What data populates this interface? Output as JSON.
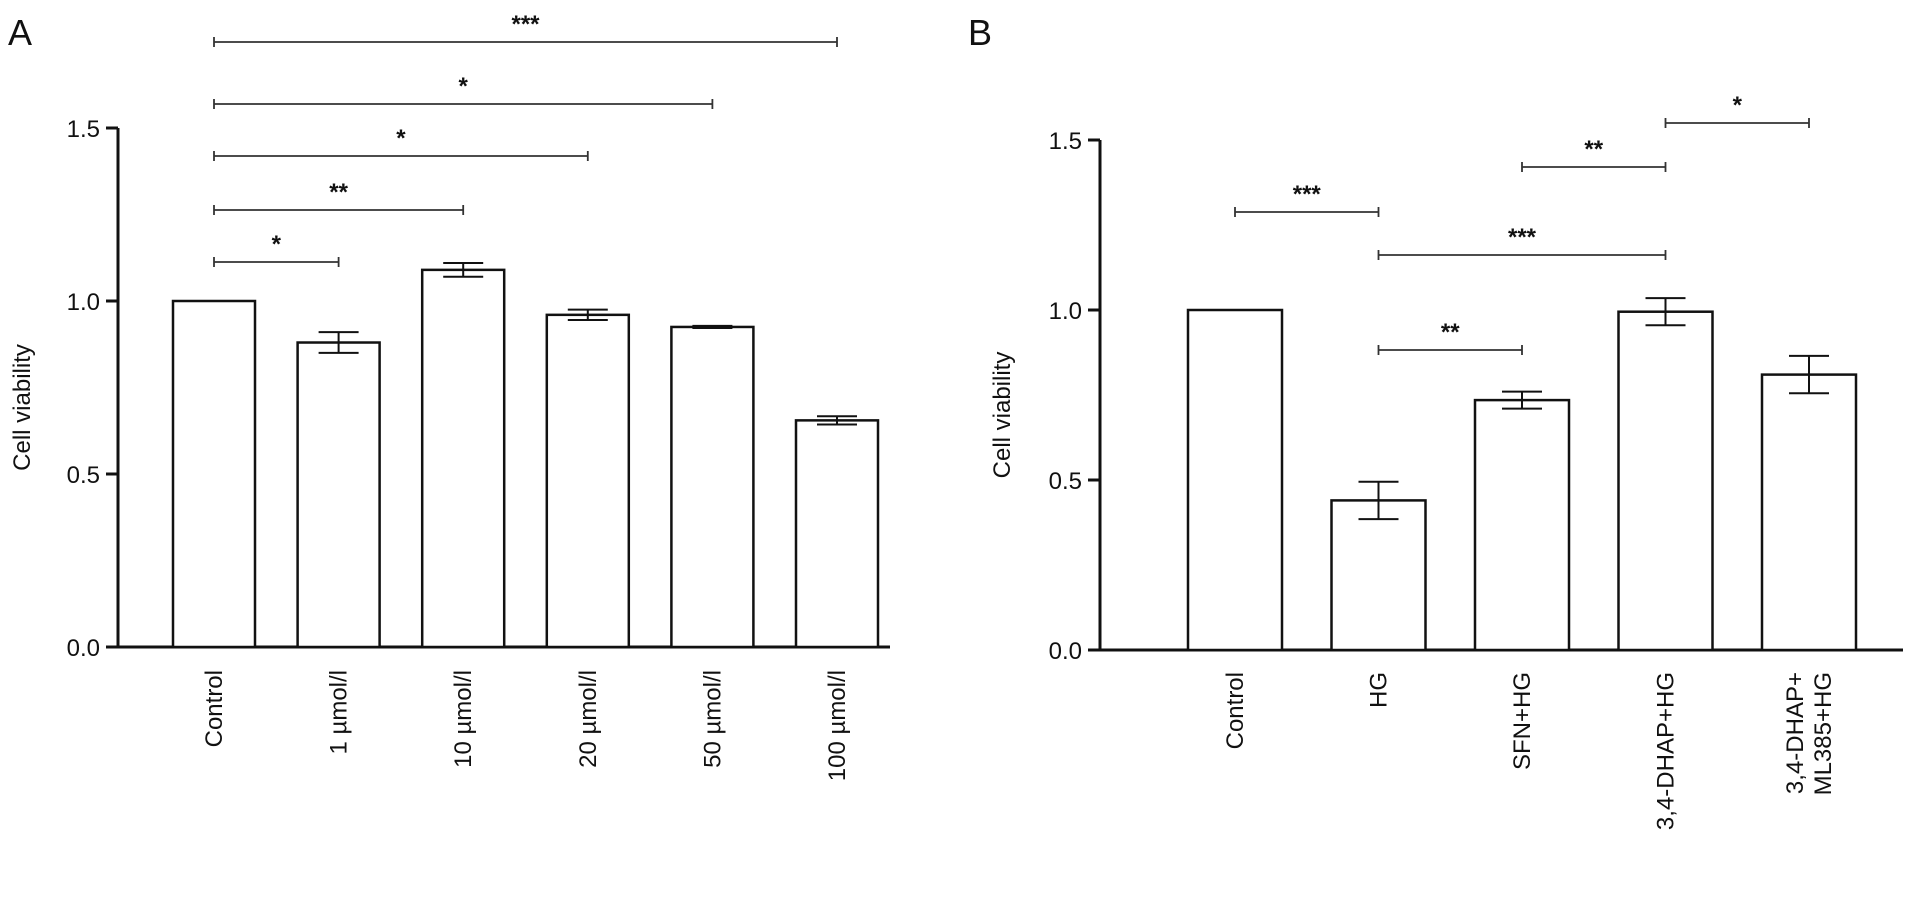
{
  "chart_data": [
    {
      "panel": "A",
      "type": "bar",
      "xlabel": "",
      "ylabel": "Cell viability",
      "ylim": [
        0,
        1.5
      ],
      "yticks": [
        "0.0",
        "0.5",
        "1.0",
        "1.5"
      ],
      "categories": [
        "Control",
        "1 µmol/l",
        "10 µmol/l",
        "20 µmol/l",
        "50 µmol/l",
        "100 µmol/l"
      ],
      "values": [
        1.0,
        0.88,
        1.09,
        0.96,
        0.925,
        0.655
      ],
      "errors": [
        0.0,
        0.03,
        0.02,
        0.015,
        0.003,
        0.012
      ],
      "significance": [
        {
          "from": "Control",
          "to": "1 µmol/l",
          "label": "*"
        },
        {
          "from": "Control",
          "to": "10 µmol/l",
          "label": "**"
        },
        {
          "from": "Control",
          "to": "20 µmol/l",
          "label": "*"
        },
        {
          "from": "Control",
          "to": "50 µmol/l",
          "label": "*"
        },
        {
          "from": "Control",
          "to": "100 µmol/l",
          "label": "***"
        }
      ]
    },
    {
      "panel": "B",
      "type": "bar",
      "xlabel": "",
      "ylabel": "Cell viability",
      "ylim": [
        0,
        1.5
      ],
      "yticks": [
        "0.0",
        "0.5",
        "1.0",
        "1.5"
      ],
      "categories": [
        "Control",
        "HG",
        "SFN+HG",
        "3,4-DHAP+HG",
        "3,4-DHAP+\nML385+HG"
      ],
      "values": [
        1.0,
        0.44,
        0.735,
        0.995,
        0.81
      ],
      "errors": [
        0.0,
        0.055,
        0.025,
        0.04,
        0.055
      ],
      "significance": [
        {
          "from": "Control",
          "to": "HG",
          "label": "***"
        },
        {
          "from": "HG",
          "to": "3,4-DHAP+HG",
          "label": "***"
        },
        {
          "from": "HG",
          "to": "SFN+HG",
          "label": "**"
        },
        {
          "from": "SFN+HG",
          "to": "3,4-DHAP+HG",
          "label": "**"
        },
        {
          "from": "3,4-DHAP+HG",
          "to": "3,4-DHAP+\nML385+HG",
          "label": "*"
        }
      ]
    }
  ]
}
